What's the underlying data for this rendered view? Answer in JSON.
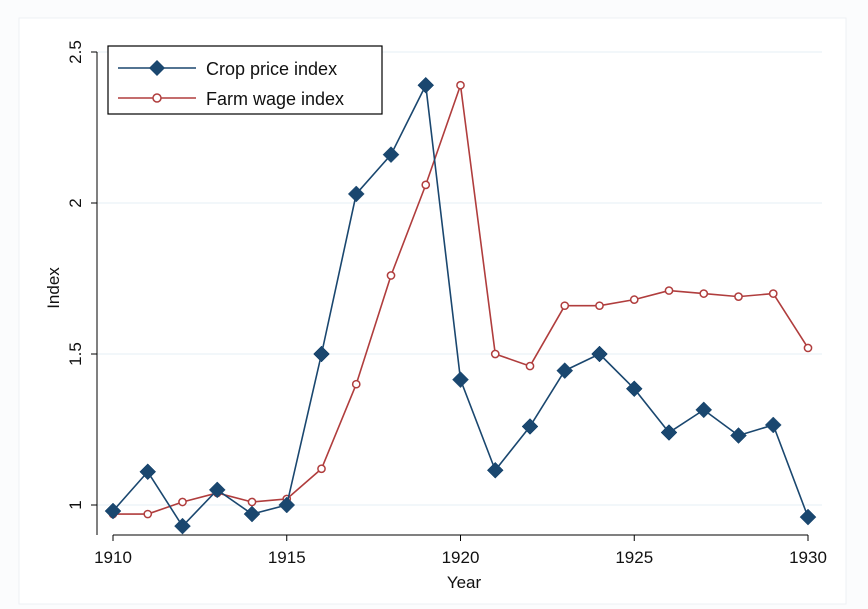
{
  "chart_data": {
    "type": "line",
    "title": "",
    "xlabel": "Year",
    "ylabel": "Index",
    "xlim": [
      1910,
      1930
    ],
    "ylim": [
      0.9,
      2.5
    ],
    "x_ticks": [
      "1910",
      "1915",
      "1920",
      "1925",
      "1930"
    ],
    "y_ticks": [
      "1",
      "1.5",
      "2",
      "2.5"
    ],
    "grid": true,
    "legend_position": "top-left",
    "x": [
      1910,
      1911,
      1912,
      1913,
      1914,
      1915,
      1916,
      1917,
      1918,
      1919,
      1920,
      1921,
      1922,
      1923,
      1924,
      1925,
      1926,
      1927,
      1928,
      1929,
      1930
    ],
    "series": [
      {
        "name": "Crop price index",
        "color": "#1a476f",
        "marker": "diamond",
        "x": [
          1910,
          1911,
          1912,
          1913,
          1914,
          1915,
          1916,
          1917,
          1918,
          1919,
          1920,
          1921,
          1922,
          1923,
          1924,
          1925,
          1926,
          1927,
          1928,
          1929,
          1930
        ],
        "values": [
          0.98,
          1.11,
          0.93,
          1.05,
          0.97,
          1.0,
          1.5,
          2.03,
          2.16,
          2.39,
          1.415,
          1.115,
          1.26,
          1.445,
          1.5,
          1.385,
          1.24,
          1.315,
          1.23,
          1.265,
          0.96
        ]
      },
      {
        "name": "Farm wage index",
        "color": "#b03d3d",
        "marker": "hollow-circle",
        "x": [
          1910,
          1911,
          1912,
          1913,
          1914,
          1915,
          1916,
          1917,
          1918,
          1919,
          1920,
          1921,
          1922,
          1923,
          1924,
          1925,
          1926,
          1927,
          1928,
          1929,
          1930
        ],
        "values": [
          0.97,
          0.97,
          1.01,
          1.04,
          1.01,
          1.02,
          1.12,
          1.4,
          1.76,
          2.06,
          2.39,
          1.5,
          1.46,
          1.66,
          1.66,
          1.68,
          1.71,
          1.7,
          1.69,
          1.7,
          1.52
        ]
      }
    ]
  }
}
